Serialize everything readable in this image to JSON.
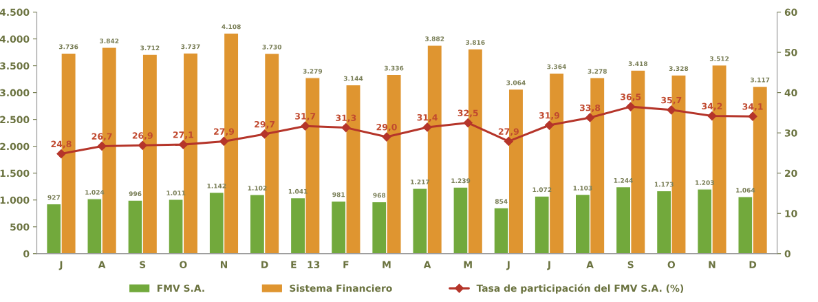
{
  "chart_data": {
    "type": "bar",
    "categories": [
      "J",
      "A",
      "S",
      "O",
      "N",
      "D",
      "E   13",
      "F",
      "M",
      "A",
      "M",
      "J",
      "J",
      "A",
      "S",
      "O",
      "N",
      "D"
    ],
    "series": [
      {
        "name": "FMV S.A.",
        "color": "#72a93c",
        "values": [
          927,
          1024,
          996,
          1011,
          1142,
          1102,
          1041,
          981,
          968,
          1217,
          1239,
          854,
          1072,
          1103,
          1244,
          1173,
          1203,
          1064
        ],
        "value_labels": [
          "927",
          "1.024",
          "996",
          "1.011",
          "1.142",
          "1.102",
          "1.041",
          "981",
          "968",
          "1.217",
          "1.239",
          "854",
          "1.072",
          "1.103",
          "1.244",
          "1.173",
          "1.203",
          "1.064"
        ]
      },
      {
        "name": "Sistema Financiero",
        "color": "#df9530",
        "values": [
          3736,
          3842,
          3712,
          3737,
          4108,
          3730,
          3279,
          3144,
          3336,
          3882,
          3816,
          3064,
          3364,
          3278,
          3418,
          3328,
          3512,
          3117
        ],
        "value_labels": [
          "3.736",
          "3.842",
          "3.712",
          "3.737",
          "4.108",
          "3.730",
          "3.279",
          "3.144",
          "3.336",
          "3.882",
          "3.816",
          "3.064",
          "3.364",
          "3.278",
          "3.418",
          "3.328",
          "3.512",
          "3.117"
        ]
      },
      {
        "name": "Tasa de participación del FMV S.A. (%)",
        "type": "line",
        "axis": "y2",
        "color": "#b5352a",
        "marker": "diamond",
        "line_style": "solid",
        "values": [
          24.8,
          26.7,
          26.9,
          27.1,
          27.9,
          29.7,
          31.7,
          31.3,
          29.0,
          31.4,
          32.5,
          27.9,
          31.9,
          33.8,
          36.5,
          35.7,
          34.2,
          34.1
        ],
        "value_labels": [
          "24,8",
          "26,7",
          "26,9",
          "27,1",
          "27,9",
          "29,7",
          "31,7",
          "31,3",
          "29,0",
          "31,4",
          "32,5",
          "27,9",
          "31,9",
          "33,8",
          "36,5",
          "35,7",
          "34,2",
          "34,1"
        ]
      }
    ],
    "ylim": [
      0,
      4500
    ],
    "yticks": [
      {
        "value": 0,
        "label": "0"
      },
      {
        "value": 500,
        "label": "500"
      },
      {
        "value": 1000,
        "label": "1.000"
      },
      {
        "value": 1500,
        "label": "1.500"
      },
      {
        "value": 2000,
        "label": "2.000"
      },
      {
        "value": 2500,
        "label": "2.500"
      },
      {
        "value": 3000,
        "label": "3.000"
      },
      {
        "value": 3500,
        "label": "3.500"
      },
      {
        "value": 4000,
        "label": "4.000"
      },
      {
        "value": 4500,
        "label": "4.500"
      }
    ],
    "y2lim": [
      0,
      60
    ],
    "y2ticks": [
      0,
      10,
      20,
      30,
      40,
      50,
      60
    ],
    "grid": false,
    "legend": "bottom"
  }
}
